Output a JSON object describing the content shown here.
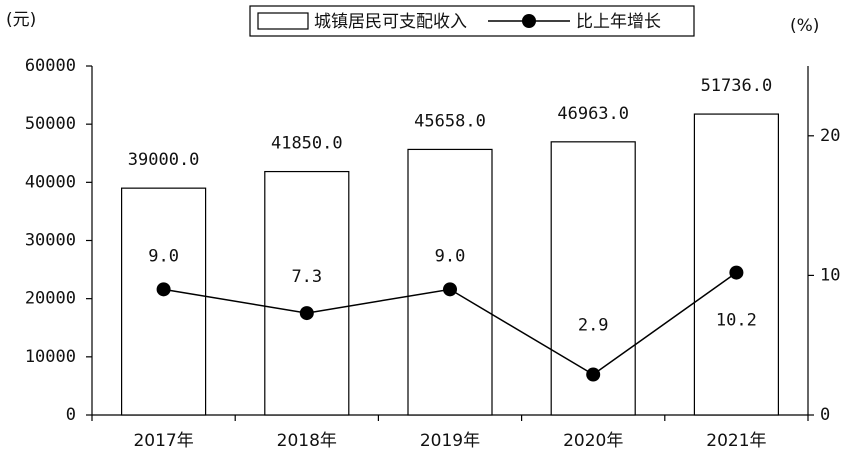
{
  "chart_data": {
    "type": "bar-line",
    "y_label": "(元)",
    "y2_label": "(%)",
    "categories": [
      "2017年",
      "2018年",
      "2019年",
      "2020年",
      "2021年"
    ],
    "series": [
      {
        "name": "城镇居民可支配收入",
        "type": "bar",
        "color": "#ffffff",
        "values": [
          39000,
          41850,
          45658,
          46963,
          51736
        ],
        "value_labels": [
          "39000.0",
          "41850.0",
          "45658.0",
          "46963.0",
          "51736.0"
        ]
      },
      {
        "name": "比上年增长",
        "type": "line",
        "axis": "y2",
        "color": "#000000",
        "values": [
          9.0,
          7.3,
          9.0,
          2.9,
          10.2
        ],
        "value_labels": [
          "9.0",
          "7.3",
          "9.0",
          "2.9",
          "10.2"
        ]
      }
    ],
    "ylim": [
      0,
      60000
    ],
    "yticks": [
      0,
      10000,
      20000,
      30000,
      40000,
      50000,
      60000
    ],
    "y2lim": [
      0,
      25
    ],
    "y2ticks": [
      0,
      10,
      20
    ]
  }
}
